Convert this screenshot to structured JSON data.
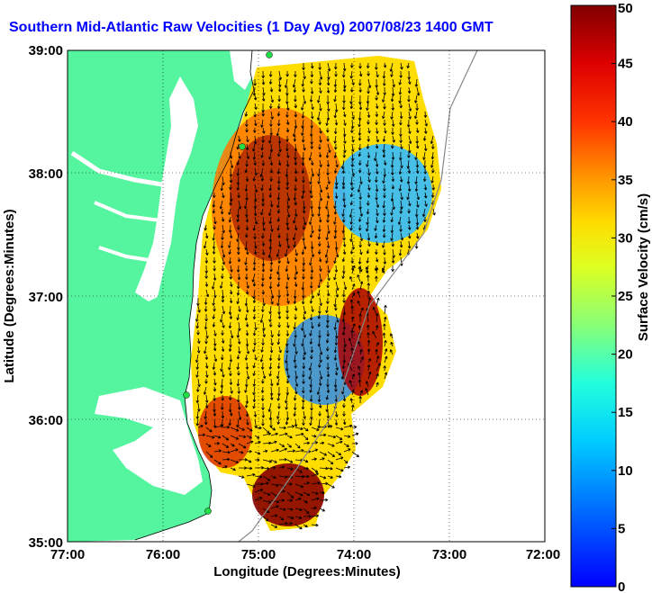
{
  "title": "Southern Mid-Atlantic Raw Velocities (1 Day Avg) 2007/08/23 1400 GMT",
  "map": {
    "xlabel": "Longitude (Degrees:Minutes)",
    "ylabel": "Latitude (Degrees:Minutes)",
    "x_ticks": [
      "77:00",
      "76:00",
      "75:00",
      "74:00",
      "73:00",
      "72:00"
    ],
    "y_ticks": [
      "39:00",
      "38:00",
      "37:00",
      "36:00",
      "35:00"
    ],
    "x_range": [
      -77,
      -72
    ],
    "y_range": [
      35,
      39
    ],
    "grid": "dotted",
    "land_color": "#55f5a0",
    "water_color": "#ffffff",
    "coast_color": "#000000",
    "station_color": "#22dd44"
  },
  "colorbar": {
    "label": "Surface Velocity (cm/s)",
    "ticks": [
      "0",
      "5",
      "10",
      "15",
      "20",
      "25",
      "30",
      "35",
      "40",
      "45",
      "50"
    ],
    "range": [
      0,
      50
    ],
    "colormap": "jet"
  }
}
